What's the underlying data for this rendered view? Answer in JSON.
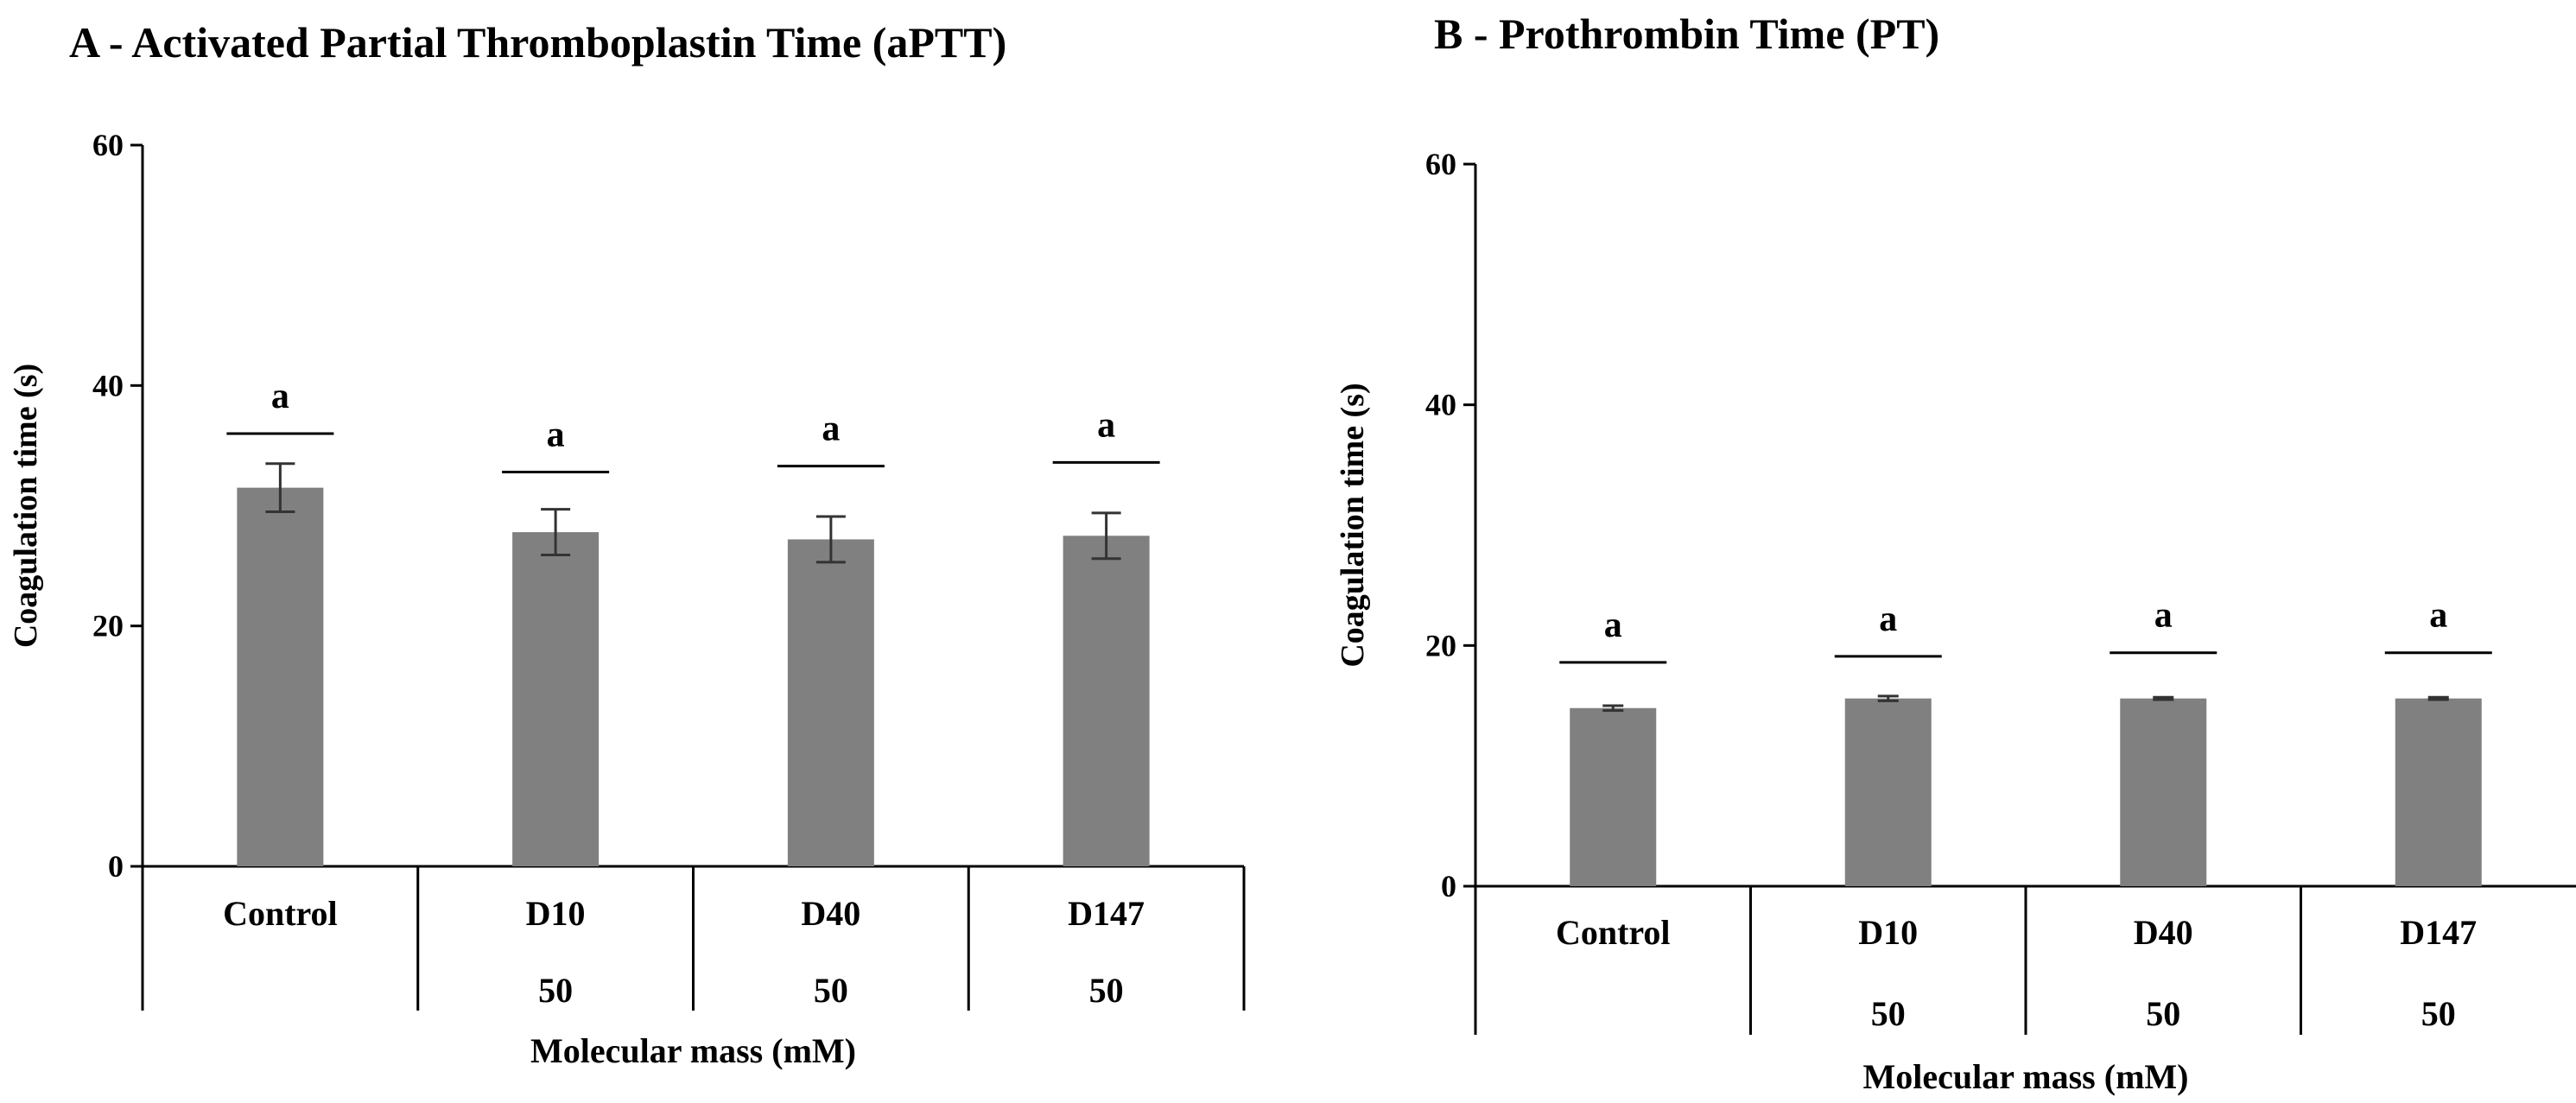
{
  "chart_data": [
    {
      "type": "bar",
      "title": "A - Activated Partial Thromboplastin Time (aPTT)",
      "ylabel": "Coagulation  time (s)",
      "xlabel": "Molecular  mass (mM)",
      "ylim": [
        0,
        60
      ],
      "yticks": [
        0,
        20,
        40,
        60
      ],
      "categories": [
        "Control",
        "D10",
        "D40",
        "D147"
      ],
      "category_sublabels": [
        "",
        "50",
        "50",
        "50"
      ],
      "values": [
        31.5,
        27.8,
        27.2,
        27.5
      ],
      "errors": [
        2.0,
        1.9,
        1.9,
        1.9
      ],
      "significance": [
        "a",
        "a",
        "a",
        "a"
      ],
      "significance_line_y": [
        36,
        32.8,
        33.3,
        33.6
      ],
      "bar_color": "#808080",
      "grid": false
    },
    {
      "type": "bar",
      "title": "B - Prothrombin Time (PT)",
      "ylabel": "Coagulation  time (s)",
      "xlabel": "Molecular  mass (mM)",
      "ylim": [
        0,
        60
      ],
      "yticks": [
        0,
        20,
        40,
        60
      ],
      "categories": [
        "Control",
        "D10",
        "D40",
        "D147"
      ],
      "category_sublabels": [
        "",
        "50",
        "50",
        "50"
      ],
      "values": [
        14.8,
        15.6,
        15.6,
        15.6
      ],
      "errors": [
        0.2,
        0.2,
        0.1,
        0.1
      ],
      "significance": [
        "a",
        "a",
        "a",
        "a"
      ],
      "significance_line_y": [
        18.6,
        19.1,
        19.4,
        19.4
      ],
      "bar_color": "#808080",
      "grid": false
    }
  ]
}
